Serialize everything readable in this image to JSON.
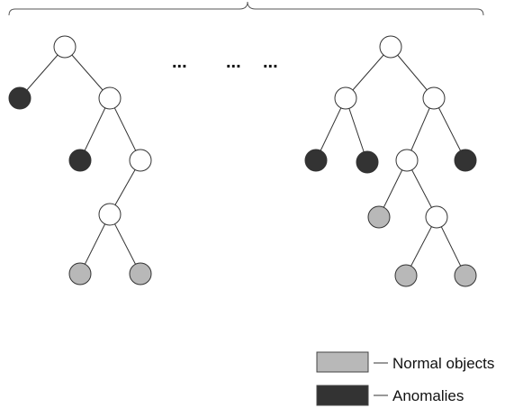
{
  "colors": {
    "normal_node": "#ffffff",
    "normal_object": "#b8b8b8",
    "anomaly": "#333333",
    "edge": "#333333"
  },
  "trees": [
    {
      "name": "tree-left",
      "nodes": [
        {
          "id": "a",
          "type": "normal_node"
        },
        {
          "id": "b",
          "type": "anomaly"
        },
        {
          "id": "c",
          "type": "normal_node"
        },
        {
          "id": "d",
          "type": "anomaly"
        },
        {
          "id": "e",
          "type": "normal_node"
        },
        {
          "id": "f",
          "type": "normal_node"
        },
        {
          "id": "g",
          "type": "normal_object"
        },
        {
          "id": "h",
          "type": "normal_object"
        }
      ],
      "edges": [
        [
          "a",
          "b"
        ],
        [
          "a",
          "c"
        ],
        [
          "c",
          "d"
        ],
        [
          "c",
          "e"
        ],
        [
          "e",
          "f"
        ],
        [
          "f",
          "g"
        ],
        [
          "f",
          "h"
        ]
      ]
    },
    {
      "name": "tree-right",
      "nodes": [
        {
          "id": "a",
          "type": "normal_node"
        },
        {
          "id": "b",
          "type": "normal_node"
        },
        {
          "id": "c",
          "type": "normal_node"
        },
        {
          "id": "d",
          "type": "anomaly"
        },
        {
          "id": "e",
          "type": "anomaly"
        },
        {
          "id": "f",
          "type": "normal_node"
        },
        {
          "id": "g",
          "type": "anomaly"
        },
        {
          "id": "h",
          "type": "normal_object"
        },
        {
          "id": "i",
          "type": "normal_node"
        },
        {
          "id": "j",
          "type": "normal_object"
        },
        {
          "id": "k",
          "type": "normal_object"
        }
      ],
      "edges": [
        [
          "a",
          "b"
        ],
        [
          "a",
          "c"
        ],
        [
          "b",
          "d"
        ],
        [
          "b",
          "e"
        ],
        [
          "c",
          "f"
        ],
        [
          "c",
          "g"
        ],
        [
          "f",
          "h"
        ],
        [
          "f",
          "i"
        ],
        [
          "i",
          "j"
        ],
        [
          "i",
          "k"
        ]
      ]
    }
  ],
  "ellipsis": [
    "...",
    "...",
    "..."
  ],
  "legend": {
    "normal_label": "Normal objects",
    "anomaly_label": "Anomalies"
  }
}
